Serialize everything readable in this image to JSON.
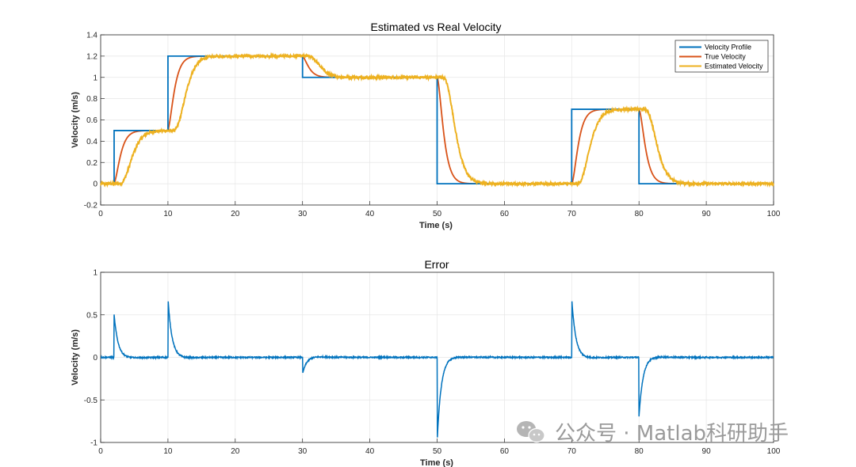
{
  "chart_data": [
    {
      "type": "line",
      "title": "Estimated vs Real Velocity",
      "xlabel": "Time (s)",
      "ylabel": "Velocity (m/s)",
      "xlim": [
        0,
        100
      ],
      "ylim": [
        -0.2,
        1.4
      ],
      "xticks": [
        "0",
        "10",
        "20",
        "30",
        "40",
        "50",
        "60",
        "70",
        "80",
        "90",
        "100"
      ],
      "yticks": [
        "-0.2",
        "0",
        "0.2",
        "0.4",
        "0.6",
        "0.8",
        "1",
        "1.2",
        "1.4"
      ],
      "grid": true,
      "legend_position": "top-right",
      "series": [
        {
          "name": "Velocity Profile",
          "color": "#0072BD",
          "shape": "step",
          "x": [
            0,
            2,
            10,
            30,
            50,
            70,
            80,
            100
          ],
          "y": [
            0,
            0.5,
            1.2,
            1.0,
            0.0,
            0.7,
            0.0,
            0.0
          ]
        },
        {
          "name": "True Velocity",
          "color": "#D95319",
          "shape": "first-order lag of profile",
          "time_constant_s": 0.6
        },
        {
          "name": "Estimated Velocity",
          "color": "#EDB120",
          "shape": "noisy lagged estimate",
          "time_constant_s": 0.6,
          "extra_delay_s": 0.7,
          "noise_amplitude": 0.012
        }
      ]
    },
    {
      "type": "line",
      "title": "Error",
      "xlabel": "Time (s)",
      "ylabel": "Velocity (m/s)",
      "xlim": [
        0,
        100
      ],
      "ylim": [
        -1,
        1
      ],
      "xticks": [
        "0",
        "10",
        "20",
        "30",
        "40",
        "50",
        "60",
        "70",
        "80",
        "90",
        "100"
      ],
      "yticks": [
        "-1",
        "-0.5",
        "0",
        "0.5",
        "1"
      ],
      "grid": true,
      "series": [
        {
          "name": "Error",
          "color": "#0072BD",
          "spike_times": [
            2,
            10,
            30,
            50,
            70,
            80
          ],
          "spike_values": [
            0.5,
            0.7,
            -0.2,
            -1.0,
            0.7,
            -0.7
          ],
          "decay_time_constant_s": 0.6,
          "undershoot": 0.05
        }
      ]
    }
  ],
  "watermark": {
    "text": "公众号 · Matlab科研助手",
    "icon": "wechat-icon"
  }
}
